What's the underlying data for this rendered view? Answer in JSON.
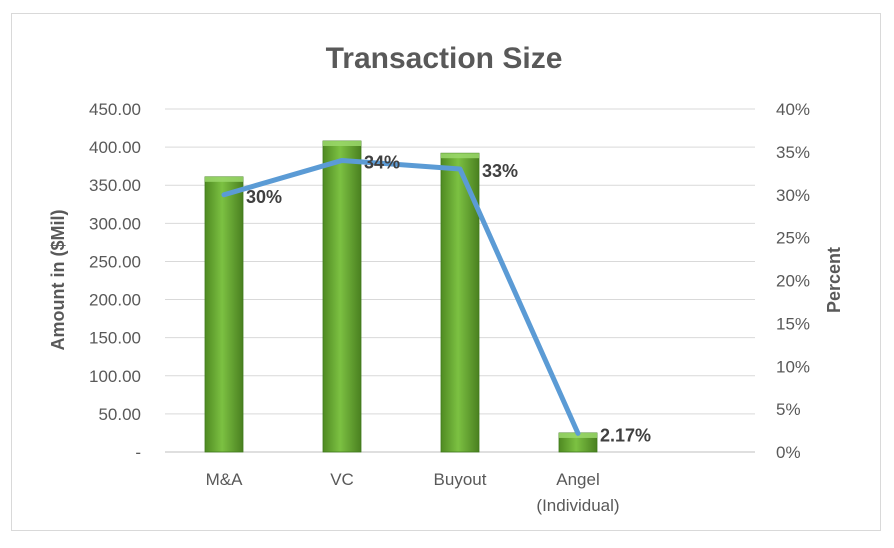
{
  "chart_data": {
    "type": "bar+line",
    "title": "Transaction Size",
    "categories": [
      "M&A",
      "VC",
      "Buyout",
      "Angel (Individual)"
    ],
    "category_lines": [
      [
        "M&A"
      ],
      [
        "VC"
      ],
      [
        "Buyout"
      ],
      [
        "Angel",
        "(Individual)"
      ]
    ],
    "series": [
      {
        "axis": "left",
        "type": "bar",
        "color": "#5b9b2a",
        "values": [
          361,
          408,
          392,
          25
        ]
      },
      {
        "axis": "right",
        "type": "line",
        "color": "#5b9bd5",
        "values": [
          0.3,
          0.34,
          0.33,
          0.0217
        ],
        "data_labels": [
          "30%",
          "34%",
          "33%",
          "2.17%"
        ]
      }
    ],
    "ylabel": "Amount in ($Mil)",
    "y2label": "Percent",
    "ylim": [
      0,
      450
    ],
    "y2lim": [
      0,
      0.4
    ],
    "y_ticks": [
      "-",
      "50.00",
      "100.00",
      "150.00",
      "200.00",
      "250.00",
      "300.00",
      "350.00",
      "400.00",
      "450.00"
    ],
    "y2_ticks": [
      "0%",
      "5%",
      "10%",
      "15%",
      "20%",
      "25%",
      "30%",
      "35%",
      "40%"
    ],
    "grid": true,
    "legend": "none"
  }
}
